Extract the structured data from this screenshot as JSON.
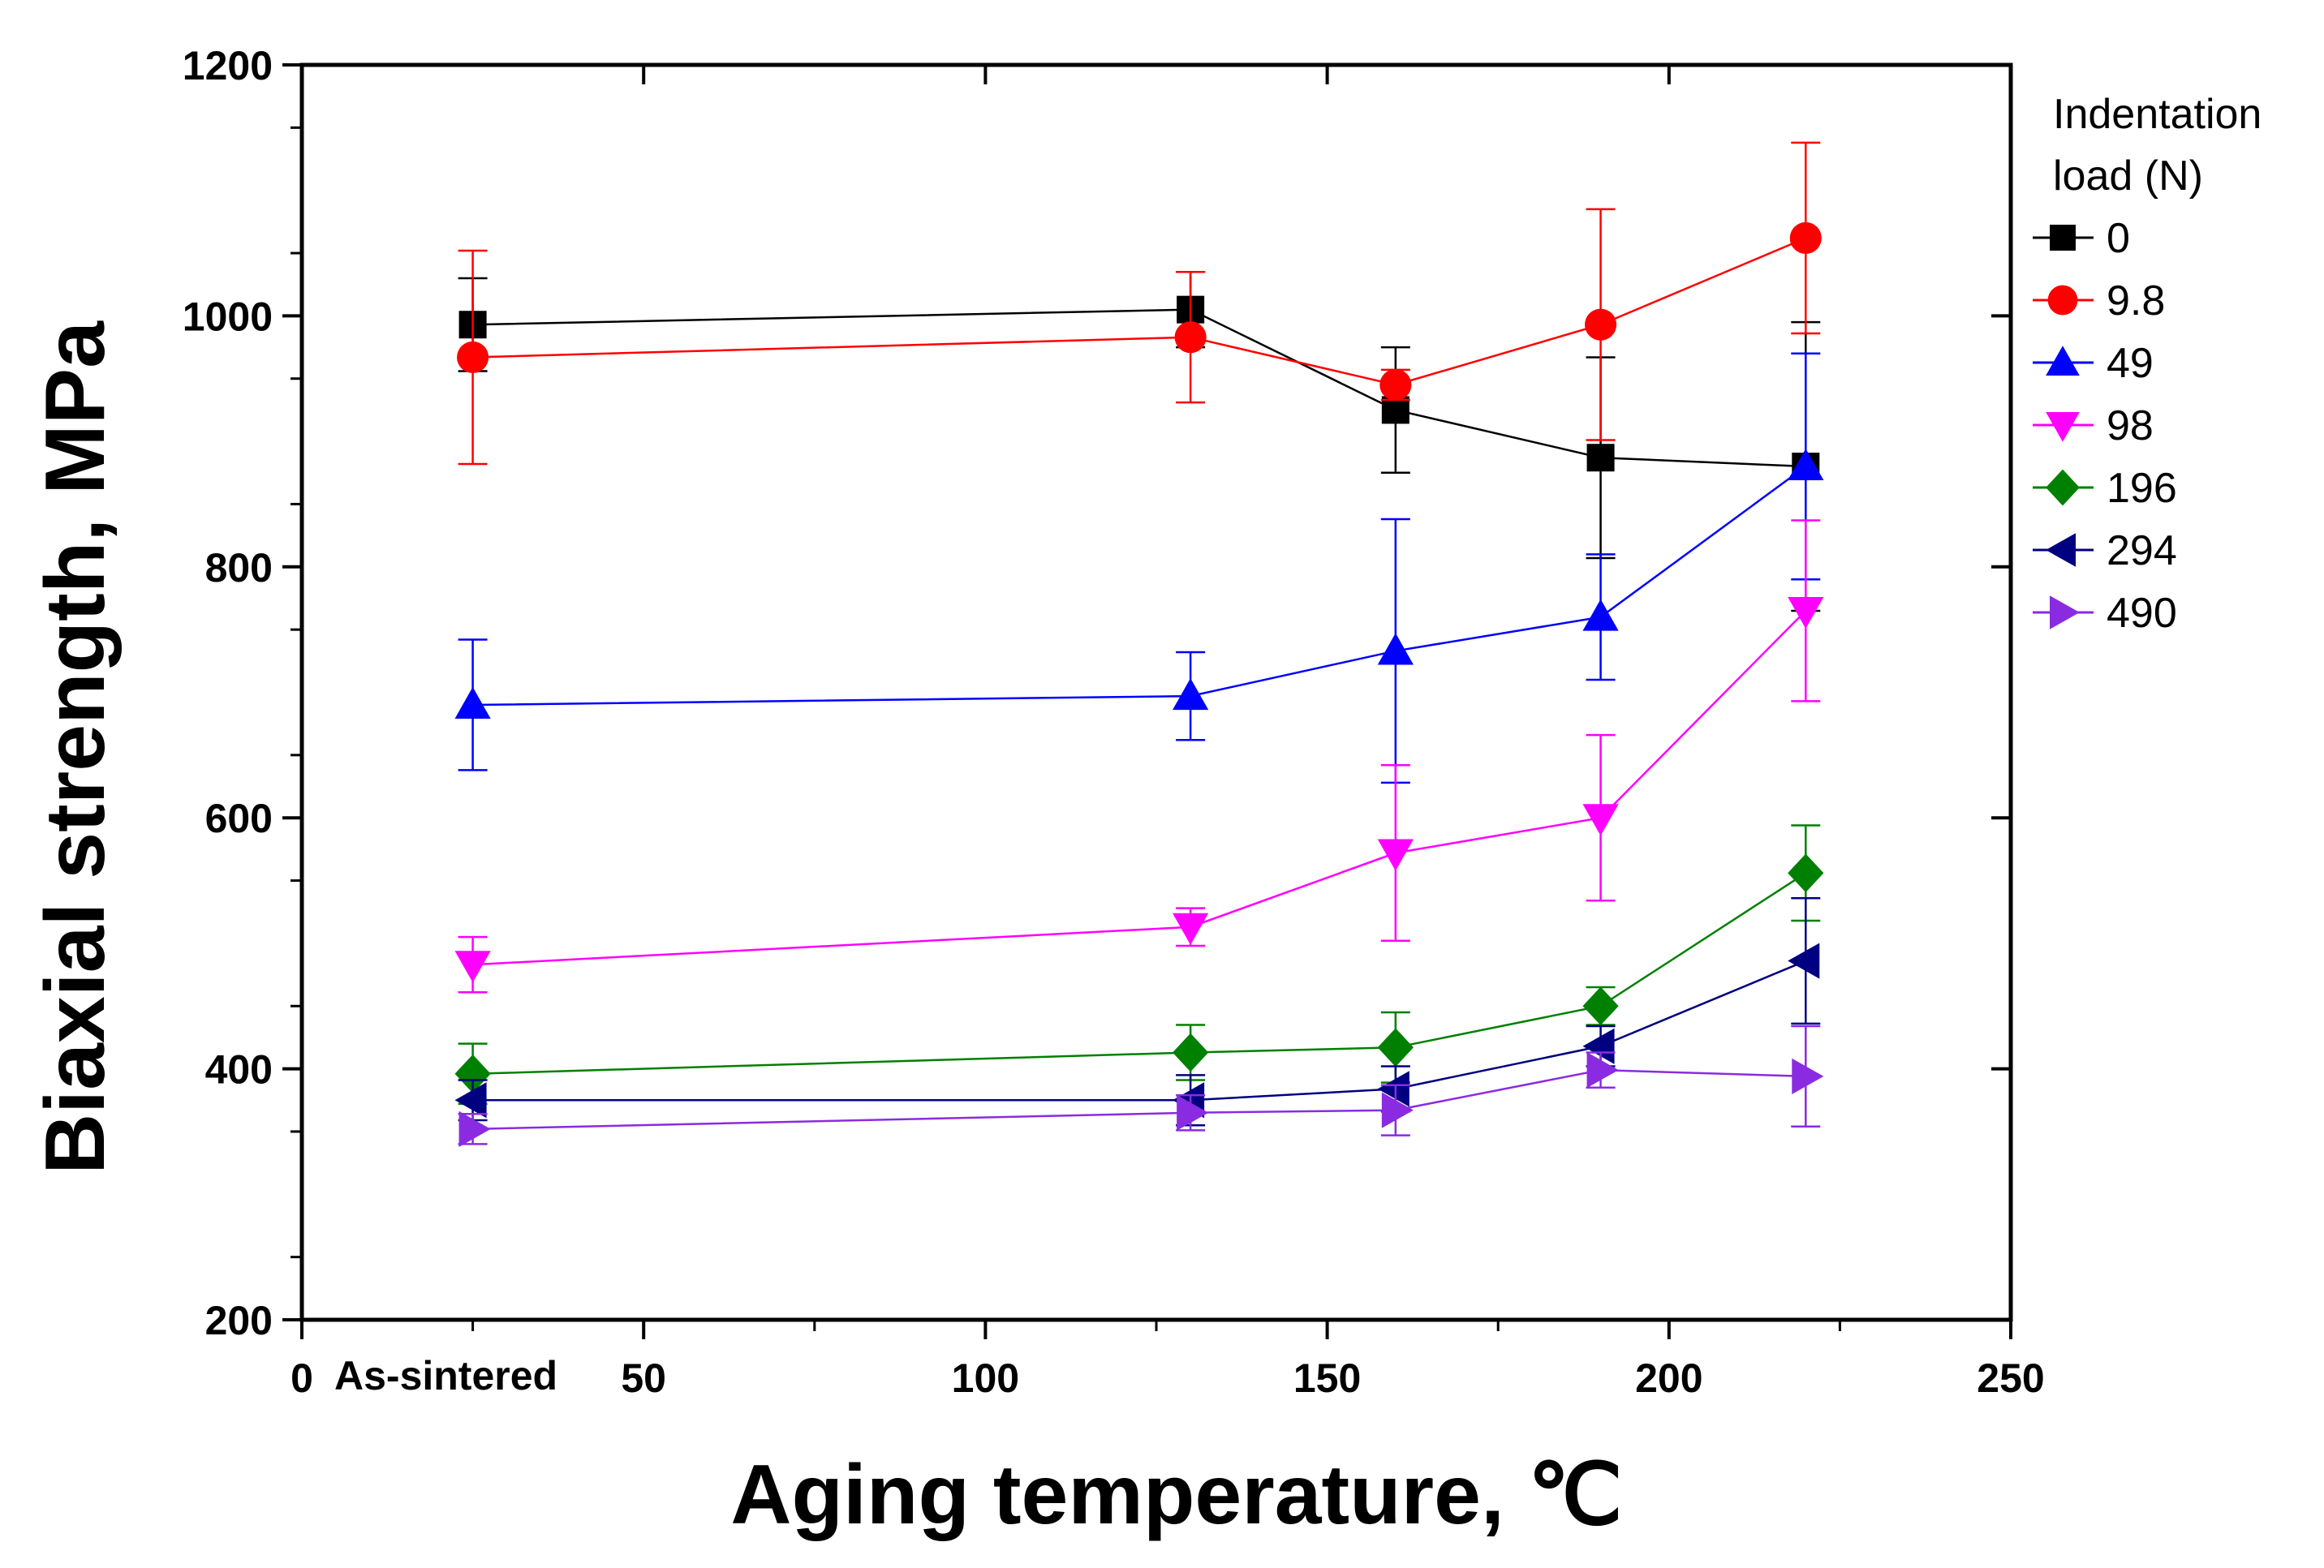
{
  "chart_data": {
    "type": "line",
    "title": "",
    "xlabel": "Aging temperature, ℃",
    "ylabel": "Biaxial strength, MPa",
    "xlim": [
      0,
      250
    ],
    "ylim": [
      200,
      1200
    ],
    "x_ticks": [
      0,
      50,
      100,
      150,
      200,
      250
    ],
    "y_ticks": [
      200,
      400,
      600,
      800,
      1000,
      1200
    ],
    "x_tick_labels": [
      "0",
      "50",
      "100",
      "150",
      "200",
      "250"
    ],
    "y_tick_labels": [
      "200",
      "400",
      "600",
      "800",
      "1000",
      "1200"
    ],
    "x": [
      25,
      130,
      160,
      190,
      220
    ],
    "annotations": [
      {
        "text": "As-sintered",
        "x": 25
      }
    ],
    "legend_title": "Indentation load (N)",
    "legend_title_lines": [
      "Indentation",
      "load (N)"
    ],
    "legend_position": "right",
    "grid": false,
    "series": [
      {
        "name": "0",
        "marker": "square",
        "color": "#000000",
        "values": [
          993,
          1005,
          925,
          887,
          880
        ],
        "errors": [
          37,
          30,
          50,
          80,
          115
        ]
      },
      {
        "name": "9.8",
        "marker": "circle",
        "color": "#ff0000",
        "values": [
          967,
          983,
          945,
          993,
          1062
        ],
        "errors": [
          85,
          52,
          12,
          92,
          76
        ]
      },
      {
        "name": "49",
        "marker": "triangle-up",
        "color": "#0000ff",
        "values": [
          690,
          697,
          733,
          760,
          880
        ],
        "errors": [
          52,
          35,
          105,
          50,
          90
        ]
      },
      {
        "name": "98",
        "marker": "triangle-down",
        "color": "#ff00ff",
        "values": [
          483,
          513,
          572,
          600,
          765
        ],
        "errors": [
          22,
          15,
          70,
          66,
          72
        ]
      },
      {
        "name": "196",
        "marker": "diamond",
        "color": "#008000",
        "values": [
          396,
          413,
          417,
          450,
          556
        ],
        "errors": [
          24,
          22,
          28,
          15,
          38
        ]
      },
      {
        "name": "294",
        "marker": "triangle-left",
        "color": "#000080",
        "values": [
          375,
          375,
          384,
          418,
          486
        ],
        "errors": [
          16,
          20,
          18,
          16,
          50
        ]
      },
      {
        "name": "490",
        "marker": "triangle-right",
        "color": "#8a2be2",
        "values": [
          352,
          365,
          367,
          399,
          394
        ],
        "errors": [
          12,
          14,
          20,
          14,
          40
        ]
      }
    ]
  }
}
